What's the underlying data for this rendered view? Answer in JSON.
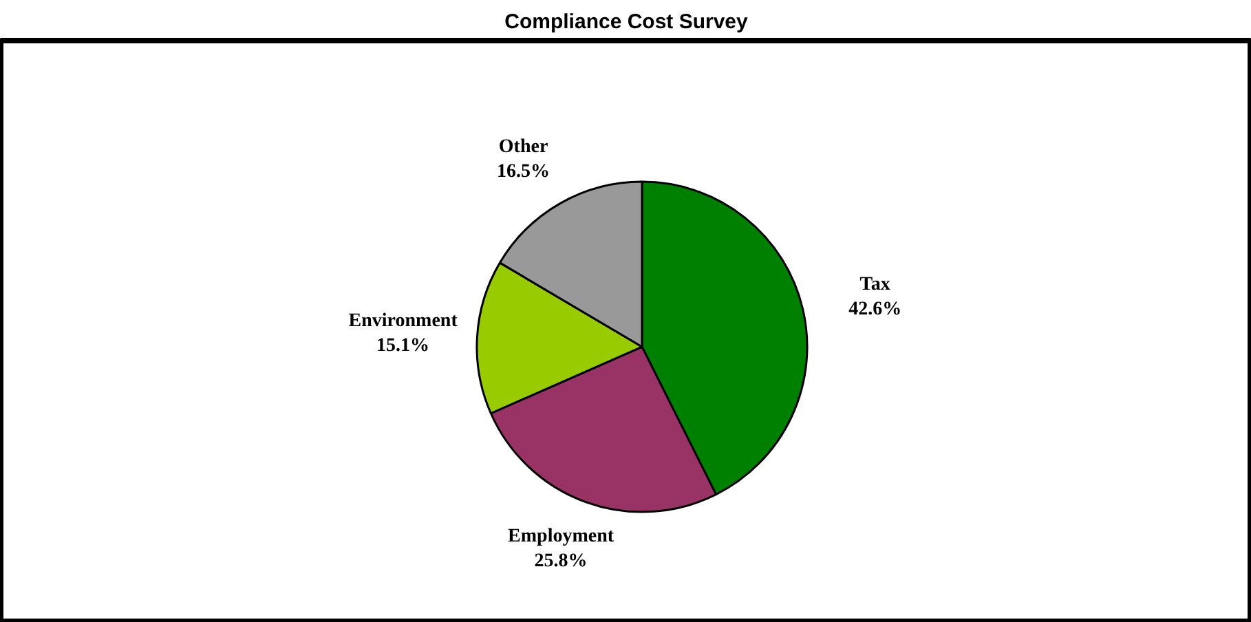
{
  "chart_data": {
    "type": "pie",
    "title": "Compliance Cost Survey",
    "categories": [
      "Tax",
      "Employment",
      "Environment",
      "Other"
    ],
    "values": [
      42.6,
      25.8,
      15.1,
      16.5
    ],
    "colors": [
      "#008000",
      "#993366",
      "#99cc00",
      "#999999"
    ],
    "value_labels": [
      "42.6%",
      "25.8%",
      "15.1%",
      "16.5%"
    ]
  }
}
